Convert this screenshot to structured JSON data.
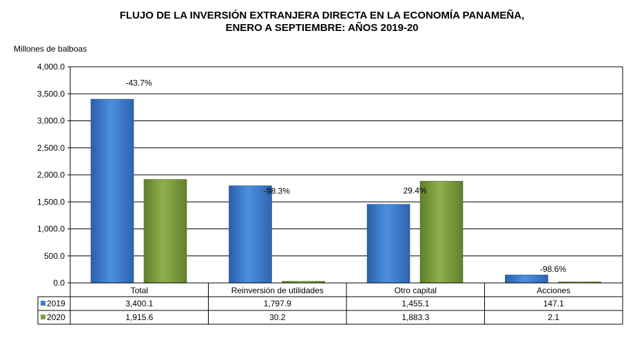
{
  "chart_data": {
    "type": "bar",
    "title_line1": "FLUJO DE LA INVERSIÓN EXTRANJERA DIRECTA EN LA ECONOMÍA PANAMEÑA,",
    "title_line2": "ENERO A SEPTIEMBRE: AÑOS 2019-20",
    "ylabel": "Millones de balboas",
    "xlabel": "",
    "ylim": [
      0,
      4000
    ],
    "yticks": [
      0,
      500,
      1000,
      1500,
      2000,
      2500,
      3000,
      3500,
      4000
    ],
    "ytick_labels": [
      "0.0",
      "500.0",
      "1,000.0",
      "1,500.0",
      "2,000.0",
      "2,500.0",
      "3,000.0",
      "3,500.0",
      "4,000.0"
    ],
    "grid": true,
    "categories": [
      "Total",
      "Reinversión de utilidades",
      "Otro capital",
      "Acciones"
    ],
    "series": [
      {
        "name": "2019",
        "color": "#3F7FD0",
        "values": [
          3400.1,
          1797.9,
          1455.1,
          147.1
        ],
        "value_labels": [
          "3,400.1",
          "1,797.9",
          "1,455.1",
          "147.1"
        ]
      },
      {
        "name": "2020",
        "color": "#7FA03F",
        "values": [
          1915.6,
          30.2,
          1883.3,
          2.1
        ],
        "value_labels": [
          "1,915.6",
          "30.2",
          "1,883.3",
          "2.1"
        ]
      }
    ],
    "annotations": [
      "-43.7%",
      "-98.3%",
      "29.4%",
      "-98.6%"
    ],
    "annotation_anchor_values": [
      3700,
      1700,
      1705,
      253
    ],
    "legend": "data-table-below"
  }
}
